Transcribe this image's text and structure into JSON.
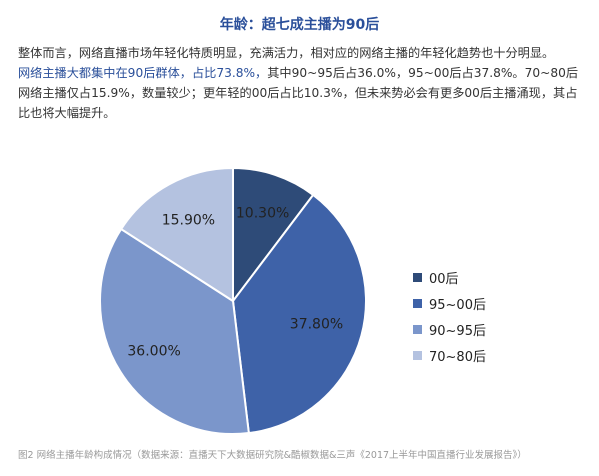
{
  "article": {
    "title": "年龄：超七成主播为90后",
    "para_line1": "整体而言，网络直播市场年轻化特质明显，充满活力，相对应的网络主播的年轻化趋势也十分明显。",
    "para_highlight": "网络主播大都集中在90后群体，占比73.8%，",
    "para_rest": "其中90~95后占36.0%，95~00后占37.8%。70~80后网络主播仅占15.9%，数量较少；更年轻的00后占比10.3%，但未来势必会有更多00后主播涌现，其占比也将大幅提升。",
    "caption": "图2 网络主播年龄构成情况（数据来源：直播天下大数据研究院&酷椒数据&三声《2017上半年中国直播行业发展报告》）"
  },
  "chart_data": {
    "type": "pie",
    "title": "",
    "legend_position": "right",
    "series": [
      {
        "name": "00后",
        "value": 10.3,
        "label": "10.30%",
        "color": "#2e4b78"
      },
      {
        "name": "95~00后",
        "value": 37.8,
        "label": "37.80%",
        "color": "#3e62a8"
      },
      {
        "name": "90~95后",
        "value": 36.0,
        "label": "36.00%",
        "color": "#7b96cb"
      },
      {
        "name": "70~80后",
        "value": 15.9,
        "label": "15.90%",
        "color": "#b4c2e0"
      }
    ]
  }
}
